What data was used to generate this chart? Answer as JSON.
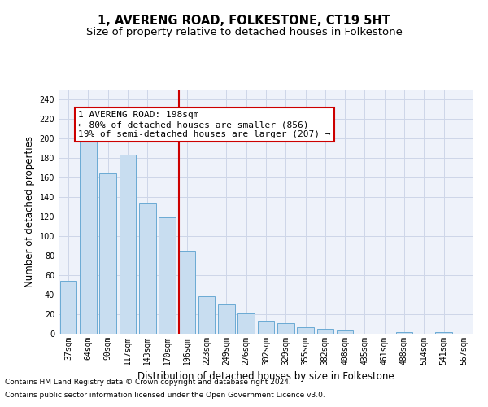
{
  "title": "1, AVERENG ROAD, FOLKESTONE, CT19 5HT",
  "subtitle": "Size of property relative to detached houses in Folkestone",
  "xlabel": "Distribution of detached houses by size in Folkestone",
  "ylabel": "Number of detached properties",
  "categories": [
    "37sqm",
    "64sqm",
    "90sqm",
    "117sqm",
    "143sqm",
    "170sqm",
    "196sqm",
    "223sqm",
    "249sqm",
    "276sqm",
    "302sqm",
    "329sqm",
    "355sqm",
    "382sqm",
    "408sqm",
    "435sqm",
    "461sqm",
    "488sqm",
    "514sqm",
    "541sqm",
    "567sqm"
  ],
  "values": [
    54,
    200,
    164,
    183,
    134,
    119,
    85,
    38,
    30,
    21,
    13,
    11,
    7,
    5,
    3,
    0,
    0,
    2,
    0,
    2,
    0
  ],
  "bar_color": "#c8ddf0",
  "bar_edge_color": "#6aaad4",
  "vline_index": 6,
  "vline_color": "#cc0000",
  "annotation_line1": "1 AVERENG ROAD: 198sqm",
  "annotation_line2": "← 80% of detached houses are smaller (856)",
  "annotation_line3": "19% of semi-detached houses are larger (207) →",
  "annotation_box_color": "#cc0000",
  "annotation_bg": "white",
  "ylim": [
    0,
    250
  ],
  "yticks": [
    0,
    20,
    40,
    60,
    80,
    100,
    120,
    140,
    160,
    180,
    200,
    220,
    240
  ],
  "grid_color": "#cdd6e8",
  "footnote1": "Contains HM Land Registry data © Crown copyright and database right 2024.",
  "footnote2": "Contains public sector information licensed under the Open Government Licence v3.0.",
  "bg_color": "#eef2fa",
  "title_fontsize": 10.5,
  "subtitle_fontsize": 9.5,
  "axis_label_fontsize": 8.5,
  "tick_fontsize": 7,
  "annotation_fontsize": 8,
  "footnote_fontsize": 6.5
}
